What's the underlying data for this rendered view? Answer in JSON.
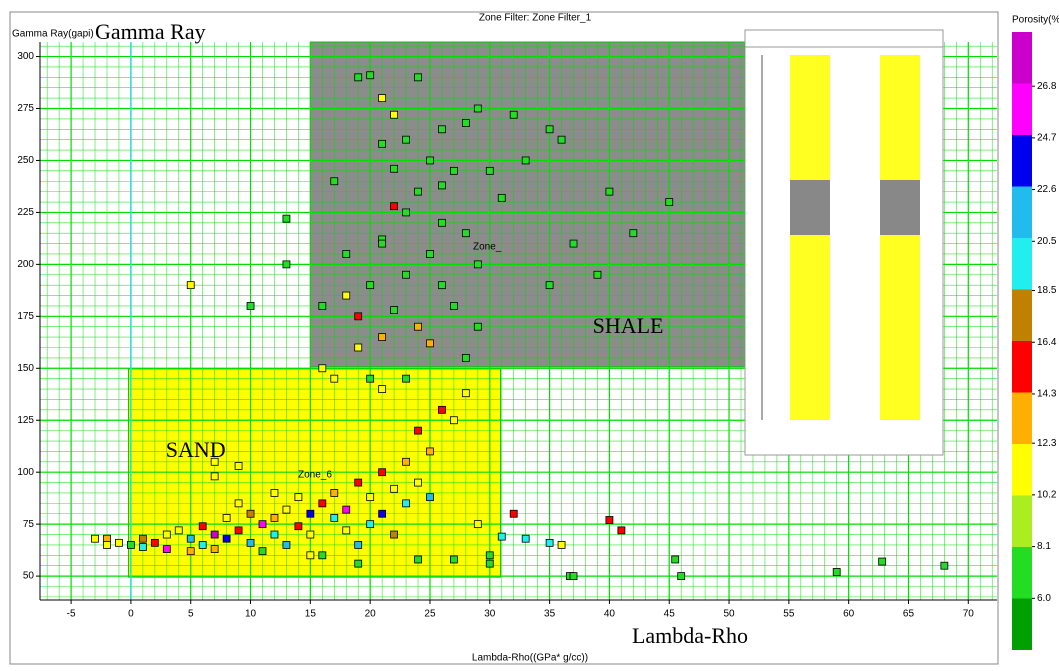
{
  "chart_data": {
    "type": "scatter",
    "title": "Zone Filter: Zone Filter_1",
    "y_label": "Gamma Ray(gapi)",
    "y_big_label": "Gamma Ray",
    "x_label": "Lambda-Rho((GPa* g/cc))",
    "x_big_label": "Lambda-Rho",
    "xlim": [
      -7.6,
      72.4
    ],
    "ylim": [
      38.5,
      307
    ],
    "xticks": [
      -5,
      0,
      5,
      10,
      15,
      20,
      25,
      30,
      35,
      40,
      45,
      50,
      55,
      60,
      65,
      70
    ],
    "yticks": [
      50,
      75,
      100,
      125,
      150,
      175,
      200,
      225,
      250,
      275,
      300
    ],
    "grid": true,
    "grid_color": "#00dd00",
    "reference_x": 0,
    "zones": [
      {
        "label": "SHALE",
        "xlim": [
          15,
          51.3
        ],
        "ylim": [
          150.7,
          307
        ],
        "color": "#8c8c8c"
      },
      {
        "label": "SAND",
        "xlim": [
          -0.2,
          30.9
        ],
        "ylim": [
          49.5,
          149.7
        ],
        "color": "#ffff00"
      }
    ],
    "annotations": [
      "Zone_",
      "Zone_6"
    ],
    "colorbar": {
      "label": "Porosity(%)",
      "clim": [
        3.9,
        29
      ],
      "colors": [
        "#00a000",
        "#22dd22",
        "#aaee22",
        "#ffff00",
        "#ffb000",
        "#ff0000",
        "#c08000",
        "#22eeee",
        "#22bbee",
        "#0000ee",
        "#ff00ff",
        "#cc00cc"
      ],
      "ticks": [
        26.8,
        24.7,
        22.6,
        20.5,
        18.5,
        16.4,
        14.3,
        12.3,
        10.2,
        8.1,
        {
          "value": 6,
          "label": "6.0"
        }
      ]
    },
    "x": [
      19,
      20,
      24,
      29,
      32,
      28,
      26,
      23,
      21,
      25,
      27,
      22,
      30,
      26,
      31,
      24,
      22,
      23,
      26,
      28,
      21,
      18,
      25,
      29,
      23,
      20,
      26,
      27,
      22,
      18,
      24,
      29,
      21,
      25,
      19,
      28,
      16,
      21,
      17,
      35,
      36,
      33,
      40,
      45,
      42,
      37,
      39,
      35,
      21,
      22,
      13,
      19,
      10,
      16,
      13,
      5,
      -3,
      -2,
      -1,
      0,
      1,
      1,
      2,
      3,
      3,
      4,
      5,
      5,
      6,
      6,
      7,
      7,
      8,
      8,
      9,
      9,
      10,
      10,
      11,
      11,
      12,
      12,
      13,
      13,
      14,
      15,
      15,
      16,
      16,
      17,
      17,
      18,
      18,
      19,
      19,
      20,
      20,
      21,
      21,
      22,
      22,
      23,
      23,
      24,
      24,
      25,
      25,
      26,
      27,
      21,
      17,
      20,
      23,
      28,
      29,
      30,
      27,
      24,
      19,
      15,
      7,
      7,
      9,
      -2,
      12,
      14,
      30,
      32,
      40,
      41,
      45.5,
      46,
      59,
      62.8,
      68,
      36.7,
      37,
      35,
      33,
      31,
      36
    ],
    "y": [
      290,
      291,
      290,
      275,
      272,
      268,
      265,
      260,
      258,
      250,
      245,
      246,
      245,
      238,
      232,
      235,
      228,
      225,
      220,
      215,
      212,
      205,
      205,
      200,
      195,
      190,
      190,
      180,
      178,
      185,
      170,
      170,
      165,
      162,
      160,
      155,
      150,
      210,
      240,
      265,
      260,
      250,
      235,
      230,
      215,
      210,
      195,
      190,
      280,
      272,
      222,
      175,
      180,
      180,
      200,
      190,
      68,
      68,
      66,
      65,
      64,
      68,
      66,
      70,
      63,
      72,
      68,
      62,
      74,
      65,
      70,
      63,
      78,
      68,
      72,
      85,
      66,
      80,
      75,
      62,
      78,
      70,
      82,
      65,
      74,
      80,
      70,
      85,
      60,
      78,
      90,
      82,
      72,
      95,
      65,
      88,
      75,
      100,
      80,
      92,
      70,
      105,
      85,
      95,
      120,
      110,
      88,
      130,
      125,
      140,
      145,
      145,
      145,
      138,
      75,
      56,
      58,
      58,
      56,
      60,
      98,
      105,
      103,
      65,
      90,
      88,
      60,
      80,
      77,
      72,
      58,
      50,
      52,
      57,
      55,
      50,
      50,
      66,
      68,
      69,
      65
    ],
    "porosity": [
      7,
      7,
      7,
      7,
      7,
      7,
      7,
      7,
      7,
      7,
      7,
      7,
      7,
      7,
      7,
      7,
      15,
      7,
      7,
      7,
      7,
      7,
      7,
      7,
      7,
      7,
      7,
      7,
      7,
      11,
      13,
      7,
      13,
      13,
      11,
      7,
      11,
      7,
      7,
      7,
      7,
      7,
      7,
      7,
      7,
      7,
      7,
      7,
      11,
      11,
      7,
      15,
      7,
      7,
      7,
      11,
      12,
      14,
      11,
      7,
      20,
      17,
      15,
      12,
      25,
      11,
      22,
      14,
      16,
      20,
      27,
      13,
      11,
      23,
      15,
      12,
      21,
      17,
      25,
      8,
      14,
      19,
      11,
      22,
      16,
      24,
      12,
      15,
      8,
      20,
      13,
      26,
      11,
      16,
      22,
      12,
      19,
      15,
      23,
      11,
      17,
      14,
      20,
      12,
      16,
      13,
      22,
      15,
      12,
      11,
      11,
      8,
      8,
      11,
      11,
      7,
      7,
      7,
      7,
      11,
      11,
      11,
      12,
      11,
      12,
      12,
      8,
      15,
      15,
      15,
      7,
      7,
      7,
      7,
      7,
      7,
      7,
      20,
      20,
      20,
      12
    ]
  }
}
